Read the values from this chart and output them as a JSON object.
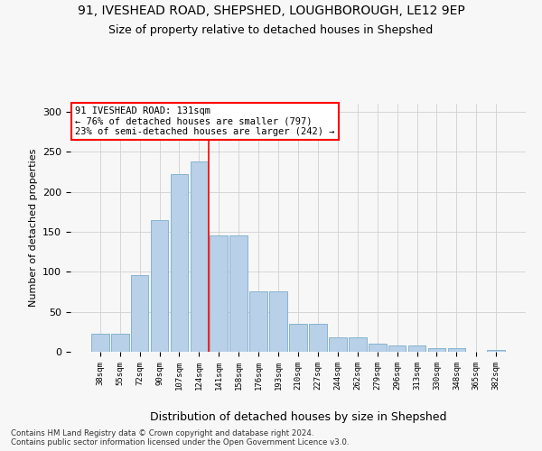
{
  "title1": "91, IVESHEAD ROAD, SHEPSHED, LOUGHBOROUGH, LE12 9EP",
  "title2": "Size of property relative to detached houses in Shepshed",
  "xlabel": "Distribution of detached houses by size in Shepshed",
  "ylabel": "Number of detached properties",
  "categories": [
    "38sqm",
    "55sqm",
    "72sqm",
    "90sqm",
    "107sqm",
    "124sqm",
    "141sqm",
    "158sqm",
    "176sqm",
    "193sqm",
    "210sqm",
    "227sqm",
    "244sqm",
    "262sqm",
    "279sqm",
    "296sqm",
    "313sqm",
    "330sqm",
    "348sqm",
    "365sqm",
    "382sqm"
  ],
  "values": [
    22,
    22,
    96,
    165,
    222,
    238,
    145,
    145,
    75,
    75,
    35,
    35,
    18,
    18,
    10,
    8,
    8,
    4,
    5,
    0,
    2
  ],
  "bar_color": "#b8d0e8",
  "bar_edge_color": "#7aadcc",
  "red_line_index": 5.5,
  "annotation_text": "91 IVESHEAD ROAD: 131sqm\n← 76% of detached houses are smaller (797)\n23% of semi-detached houses are larger (242) →",
  "ylim": [
    0,
    310
  ],
  "yticks": [
    0,
    50,
    100,
    150,
    200,
    250,
    300
  ],
  "footer": "Contains HM Land Registry data © Crown copyright and database right 2024.\nContains public sector information licensed under the Open Government Licence v3.0.",
  "bg_color": "#f7f7f7",
  "grid_color": "#d0d0d0"
}
